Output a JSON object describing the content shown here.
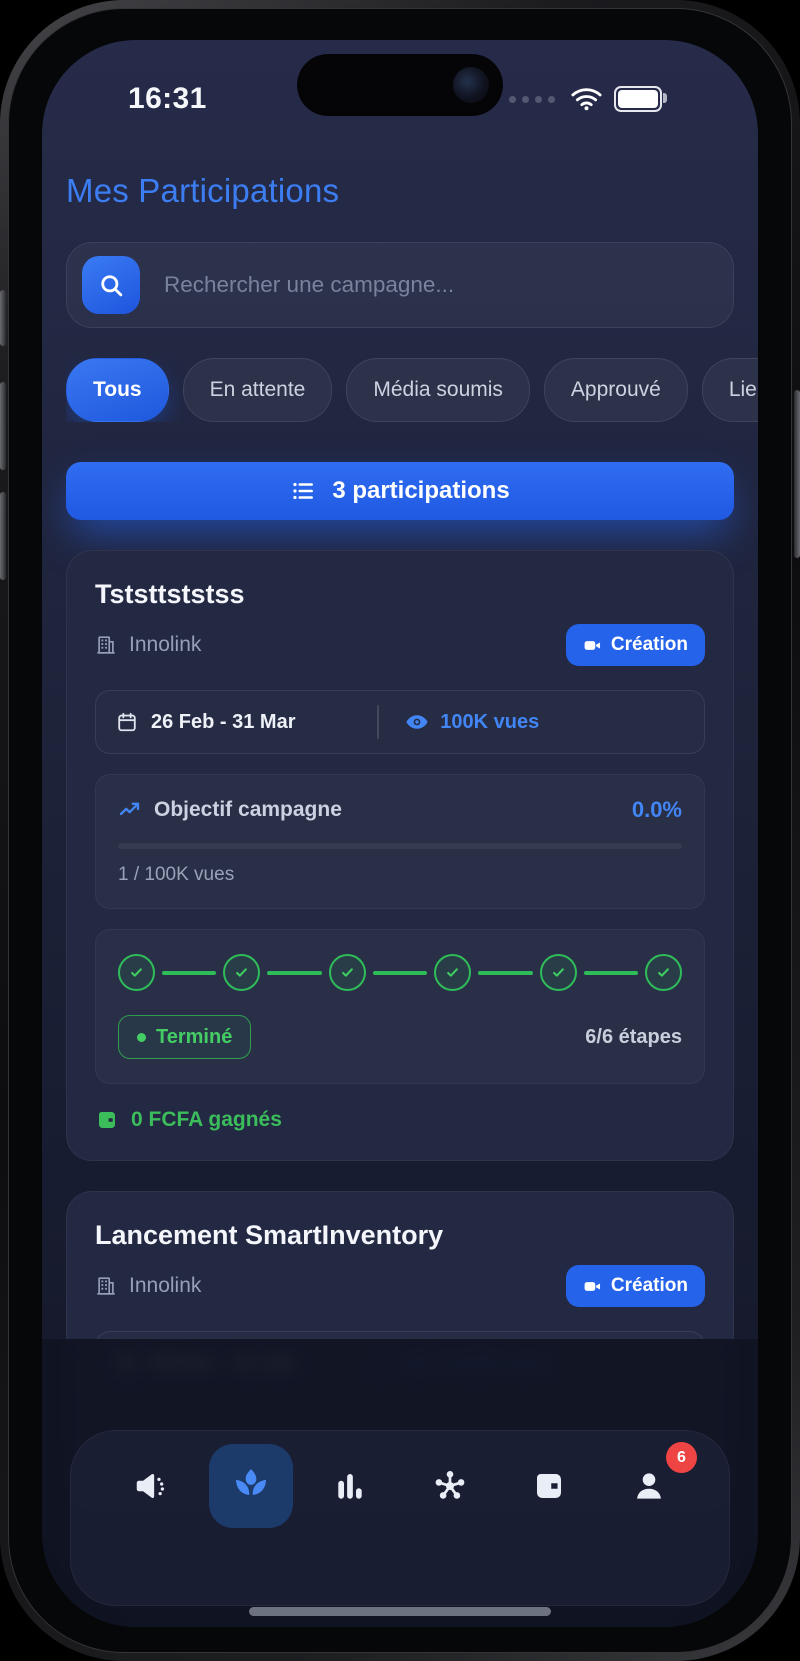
{
  "status_bar": {
    "time": "16:31"
  },
  "page": {
    "title": "Mes Participations"
  },
  "search": {
    "placeholder": "Rechercher une campagne...",
    "icon": "search-icon"
  },
  "filters": [
    {
      "label": "Tous",
      "active": true
    },
    {
      "label": "En attente",
      "active": false
    },
    {
      "label": "Média soumis",
      "active": false
    },
    {
      "label": "Approuvé",
      "active": false
    },
    {
      "label": "Lie",
      "active": false,
      "truncated": true
    }
  ],
  "summary_button": {
    "label": "3 participations",
    "icon": "list-icon"
  },
  "cards": [
    {
      "title": "Tststtststss",
      "brand": "Innolink",
      "badge": {
        "label": "Création",
        "icon": "video-camera-icon"
      },
      "date_range": "26 Feb - 31 Mar",
      "views": "100K vues",
      "objective": {
        "label": "Objectif campagne",
        "percent": "0.0%",
        "progress_text": "1 / 100K vues"
      },
      "steps": {
        "total": 6,
        "completed": 6,
        "status_label": "Terminé",
        "count_label": "6/6 étapes"
      },
      "earnings": "0 FCFA gagnés"
    },
    {
      "title": "Lancement SmartInventory",
      "brand": "Innolink",
      "badge": {
        "label": "Création",
        "icon": "video-camera-icon"
      },
      "date_range": "09 Dec - 31 Jan",
      "views": "5.01M vues"
    }
  ],
  "nav": {
    "items": [
      {
        "name": "announcements",
        "icon": "megaphone-icon",
        "active": false
      },
      {
        "name": "campaigns",
        "icon": "sprout-icon",
        "active": true
      },
      {
        "name": "stats",
        "icon": "bar-chart-icon",
        "active": false
      },
      {
        "name": "network",
        "icon": "network-icon",
        "active": false
      },
      {
        "name": "wallet",
        "icon": "wallet-icon",
        "active": false
      },
      {
        "name": "profile",
        "icon": "person-icon",
        "active": false,
        "badge": "6"
      }
    ]
  },
  "colors": {
    "accent_blue": "#2563eb",
    "text_blue": "#4285f4",
    "green": "#3ecf63",
    "badge_red": "#ef4444"
  }
}
